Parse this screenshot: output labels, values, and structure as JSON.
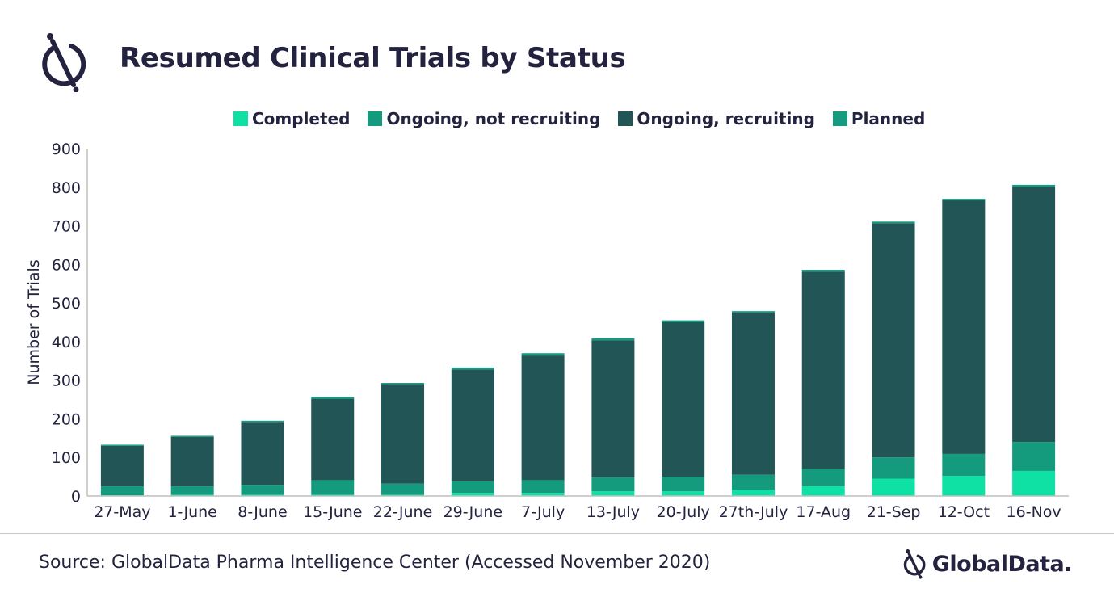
{
  "header": {
    "title": "Resumed Clinical Trials by Status"
  },
  "icons": {
    "logo": "globaldata-logo-icon",
    "brand": "globaldata-brand-icon"
  },
  "colors": {
    "completed": "#0fe0a3",
    "ongoing_not_recruiting": "#149b7e",
    "ongoing_recruiting": "#215556",
    "planned": "#179b80",
    "text": "#23233f"
  },
  "chart_data": {
    "type": "bar",
    "stacked": true,
    "categories": [
      "27-May",
      "1-June",
      "8-June",
      "15-June",
      "22-June",
      "29-June",
      "7-July",
      "13-July",
      "20-July",
      "27th-July",
      "17-Aug",
      "21-Sep",
      "12-Oct",
      "16-Nov"
    ],
    "series": [
      {
        "name": "Completed",
        "values": [
          2,
          3,
          3,
          3,
          3,
          8,
          8,
          12,
          12,
          16,
          25,
          45,
          52,
          65
        ]
      },
      {
        "name": "Ongoing, not recruiting",
        "values": [
          23,
          22,
          26,
          38,
          29,
          30,
          33,
          36,
          38,
          39,
          46,
          55,
          57,
          75
        ]
      },
      {
        "name": "Ongoing, recruiting",
        "values": [
          105,
          128,
          163,
          211,
          258,
          290,
          323,
          355,
          400,
          420,
          510,
          607,
          657,
          660
        ]
      },
      {
        "name": "Planned",
        "values": [
          3,
          3,
          3,
          5,
          3,
          5,
          6,
          6,
          5,
          4,
          5,
          4,
          4,
          6
        ]
      }
    ],
    "ylabel": "Number of Trials",
    "xlabel": "",
    "ylim": [
      0,
      900
    ],
    "yticks": [
      0,
      100,
      200,
      300,
      400,
      500,
      600,
      700,
      800,
      900
    ],
    "grid": false,
    "legend": "top-center"
  },
  "footer": {
    "source": "Source: GlobalData Pharma Intelligence Center (Accessed November 2020)",
    "brand": "GlobalData."
  }
}
